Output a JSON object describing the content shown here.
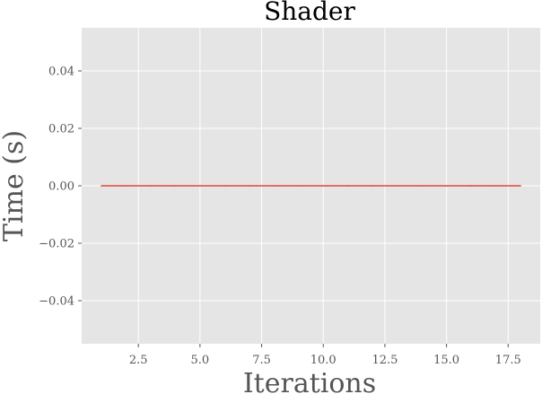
{
  "chart_data": {
    "type": "line",
    "title": "Shader",
    "xlabel": "Iterations",
    "ylabel": "Time (s)",
    "xlim": [
      0.2,
      18.8
    ],
    "ylim": [
      -0.055,
      0.055
    ],
    "x_ticks": [
      2.5,
      5.0,
      7.5,
      10.0,
      12.5,
      15.0,
      17.5
    ],
    "x_tick_labels": [
      "2.5",
      "5.0",
      "7.5",
      "10.0",
      "12.5",
      "15.0",
      "17.5"
    ],
    "y_ticks": [
      0.04,
      0.02,
      0.0,
      -0.02,
      -0.04
    ],
    "y_tick_labels": [
      "0.04",
      "0.02",
      "0.00",
      "−0.02",
      "−0.04"
    ],
    "grid": true,
    "background_color": "#e5e5e5",
    "grid_color": "#ffffff",
    "series": [
      {
        "color": "#e24a33",
        "x": [
          1,
          2,
          3,
          4,
          5,
          6,
          7,
          8,
          9,
          10,
          11,
          12,
          13,
          14,
          15,
          16,
          17,
          18
        ],
        "y": [
          0,
          0,
          0,
          0,
          0,
          0,
          0,
          0,
          0,
          0,
          0,
          0,
          0,
          0,
          0,
          0,
          0,
          0
        ]
      }
    ]
  }
}
